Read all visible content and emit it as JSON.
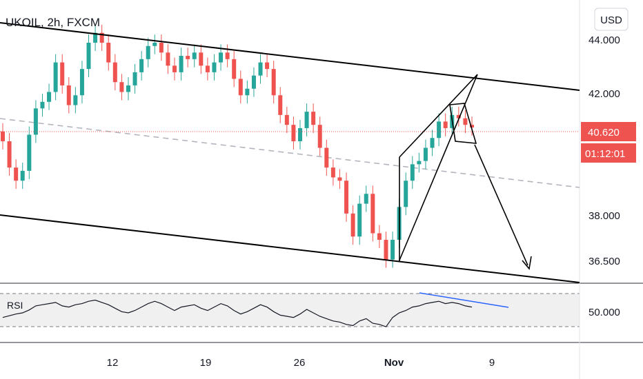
{
  "header": {
    "title": "UKOIL, 2h, FXCM",
    "currency": "USD"
  },
  "price_badge": {
    "value": "40.620",
    "countdown": "01:12:01",
    "color": "#ef5350"
  },
  "rsi": {
    "label": "RSI",
    "level_label": "50.000",
    "upper_band": 70,
    "lower_band": 30
  },
  "colors": {
    "up": "#26a69a",
    "down": "#ef5350",
    "accent": "#2962ff",
    "ma": "#b2b5be",
    "pattern": "#000000"
  },
  "chart_data": {
    "type": "candlestick",
    "title": "UKOIL, 2h, FXCM",
    "x_ticks": [
      "12",
      "19",
      "26",
      "Nov",
      "9"
    ],
    "y_ticks": [
      "44.000",
      "42.000",
      "38.000",
      "36.500"
    ],
    "ylim": [
      35.9,
      44.5
    ],
    "last_price": 40.62,
    "grid": false,
    "series": [
      {
        "name": "price",
        "values": [
          40.2,
          39.4,
          39.0,
          39.3,
          40.4,
          41.2,
          41.4,
          41.7,
          42.6,
          41.9,
          41.3,
          41.6,
          42.4,
          43.2,
          43.5,
          43.2,
          42.6,
          42.0,
          41.7,
          41.9,
          42.3,
          42.7,
          43.1,
          43.2,
          42.9,
          42.5,
          42.3,
          42.8,
          42.7,
          42.9,
          42.5,
          42.3,
          42.6,
          42.9,
          42.7,
          42.1,
          41.6,
          41.8,
          42.2,
          42.6,
          42.4,
          41.6,
          41.0,
          40.7,
          40.2,
          40.6,
          41.1,
          40.7,
          40.0,
          39.4,
          39.1,
          39.0,
          38.0,
          37.3,
          38.3,
          38.6,
          37.4,
          37.2,
          36.6,
          37.2,
          38.2,
          39.0,
          39.5,
          39.6,
          40.0,
          40.3,
          40.8,
          40.6,
          41.0,
          40.9,
          40.7,
          40.62
        ]
      }
    ],
    "rsi_values": [
      42,
      45,
      48,
      50,
      55,
      62,
      64,
      66,
      68,
      62,
      60,
      64,
      66,
      70,
      72,
      68,
      64,
      58,
      52,
      50,
      54,
      60,
      66,
      70,
      66,
      60,
      54,
      60,
      62,
      64,
      58,
      54,
      60,
      66,
      62,
      54,
      48,
      52,
      58,
      64,
      60,
      52,
      46,
      44,
      42,
      48,
      56,
      50,
      44,
      40,
      36,
      34,
      30,
      28,
      36,
      40,
      32,
      30,
      26,
      42,
      50,
      54,
      60,
      62,
      66,
      68,
      70,
      66,
      68,
      66,
      62,
      60
    ],
    "annotations": [
      {
        "type": "trendline",
        "label": "upper channel"
      },
      {
        "type": "trendline",
        "label": "lower channel"
      },
      {
        "type": "pattern",
        "label": "rising wedge"
      },
      {
        "type": "arrow",
        "label": "projected down move"
      }
    ]
  }
}
